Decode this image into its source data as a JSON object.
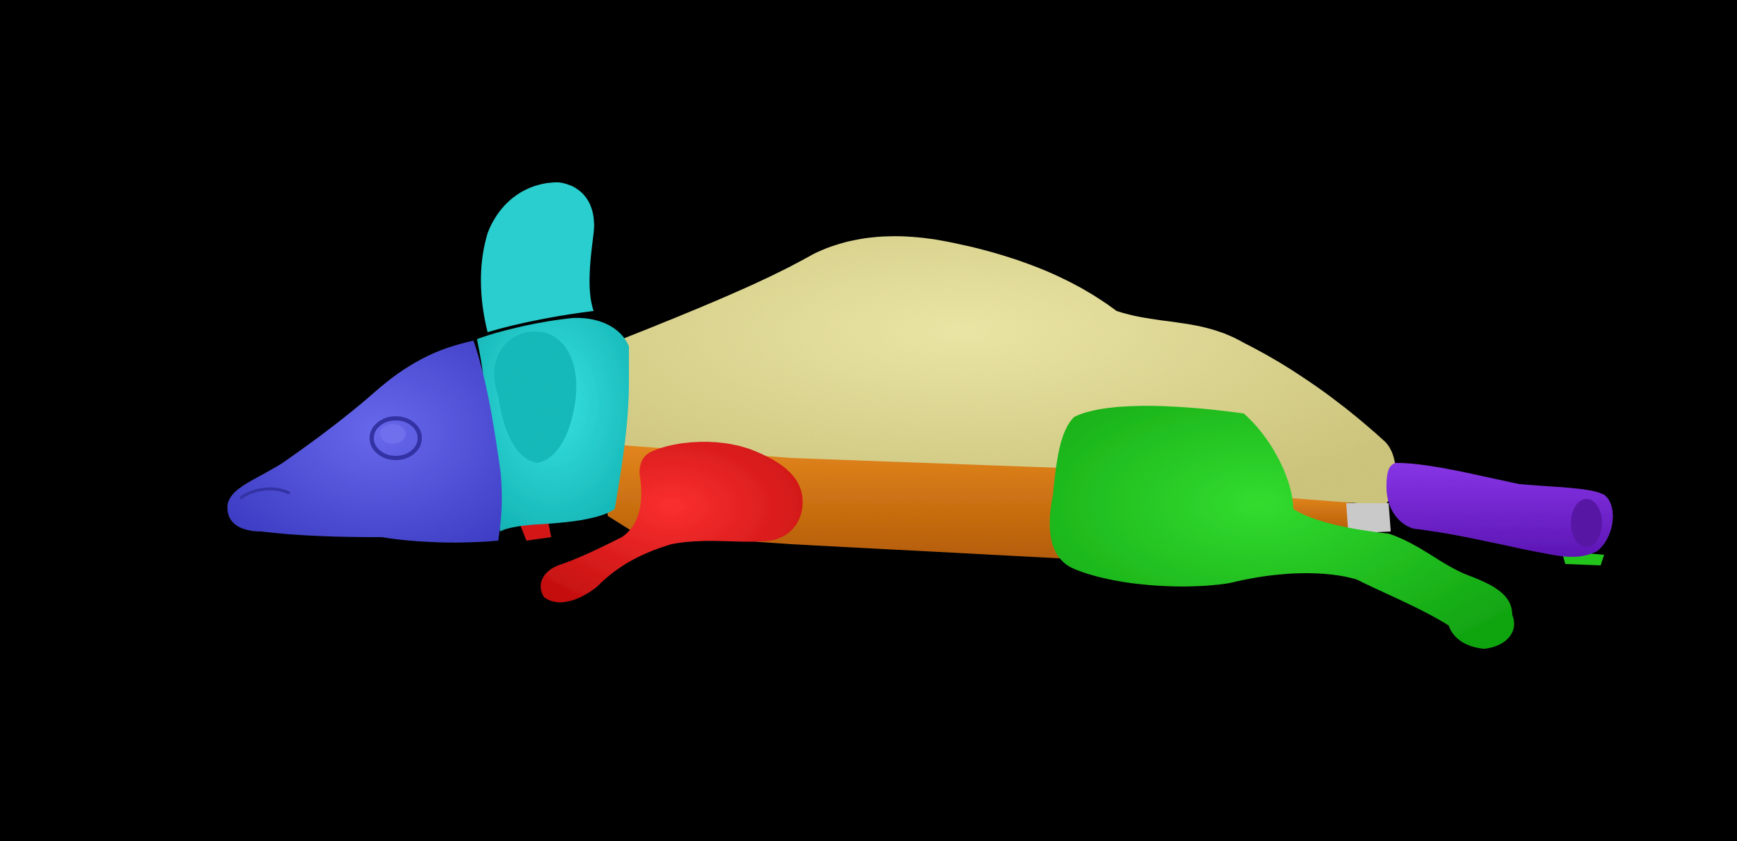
{
  "scene": {
    "background_color": "#000000",
    "subject": "mouse-3d-scan",
    "segments": [
      {
        "name": "head",
        "color": "#5a5ae0"
      },
      {
        "name": "neck",
        "color": "#22d4d4"
      },
      {
        "name": "torso",
        "color": "#e2dc94"
      },
      {
        "name": "belly",
        "color": "#e07d12"
      },
      {
        "name": "front-leg",
        "color": "#ee1c1c"
      },
      {
        "name": "hind-leg",
        "color": "#22c81e"
      },
      {
        "name": "pelvis",
        "color": "#c8c8c8"
      },
      {
        "name": "tail",
        "color": "#7a22d8"
      }
    ]
  }
}
